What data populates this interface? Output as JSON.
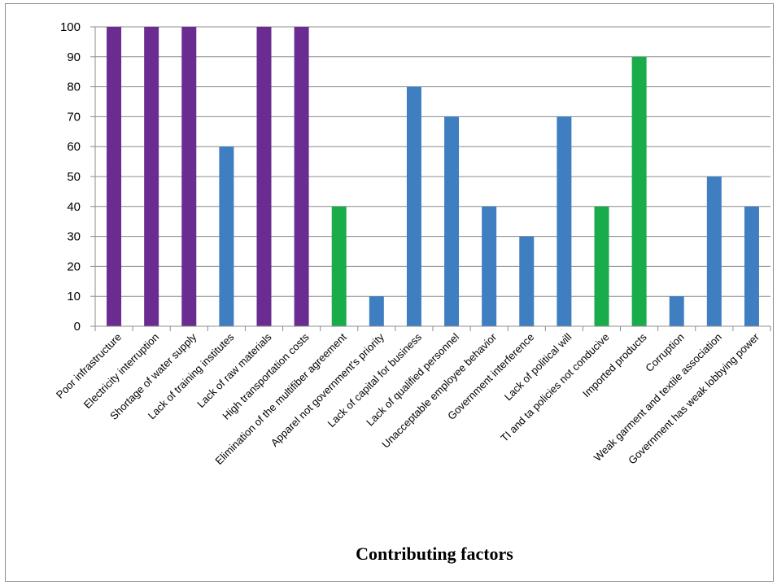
{
  "chart_data": {
    "type": "bar",
    "title": "",
    "xlabel": "Contributing factors",
    "ylabel": "",
    "ylim": [
      0,
      100
    ],
    "yticks": [
      0,
      10,
      20,
      30,
      40,
      50,
      60,
      70,
      80,
      90,
      100
    ],
    "grid": true,
    "legend": "none",
    "categories": [
      "Poor infrastructure",
      "Electricity interruption",
      "Shortage of water supply",
      "Lack of training institutes",
      "Lack of raw materials",
      "High transportation costs",
      "Elimination of the multifiber agreement",
      "Apparel not government's priority",
      "Lack of capital for business",
      "Lack of qualified personnel",
      "Unacceptable employee behavior",
      "Government interference",
      "Lack of political will",
      "TI and ta policies not conducive",
      "Imported products",
      "Corruption",
      "Weak garment and textile association",
      "Government has weak lobbying power"
    ],
    "values": [
      100,
      100,
      100,
      60,
      100,
      100,
      40,
      10,
      80,
      70,
      40,
      30,
      70,
      40,
      90,
      10,
      50,
      40
    ],
    "bar_colors": [
      "#6a2c91",
      "#6a2c91",
      "#6a2c91",
      "#3f7fc1",
      "#6a2c91",
      "#6a2c91",
      "#1aab4b",
      "#3f7fc1",
      "#3f7fc1",
      "#3f7fc1",
      "#3f7fc1",
      "#3f7fc1",
      "#3f7fc1",
      "#1aab4b",
      "#1aab4b",
      "#3f7fc1",
      "#3f7fc1",
      "#3f7fc1"
    ]
  },
  "colors": {
    "purple": "#6a2c91",
    "blue": "#3f7fc1",
    "green": "#1aab4b",
    "gridline": "#8c8c8c"
  }
}
